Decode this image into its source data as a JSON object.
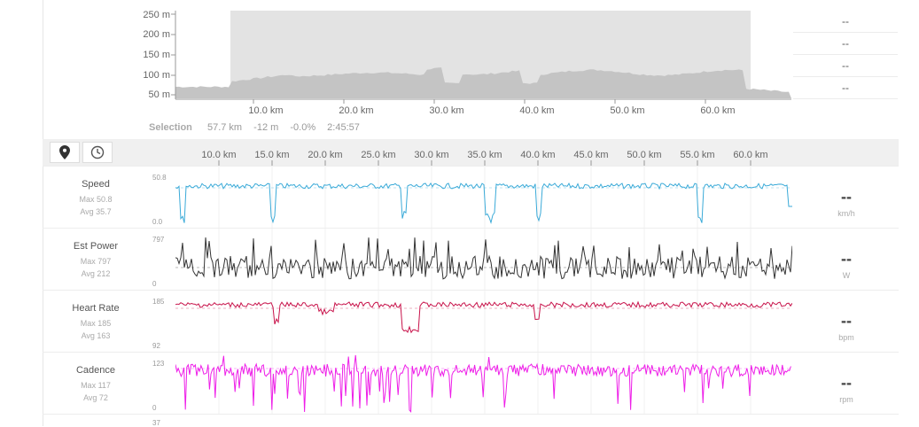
{
  "elevation": {
    "y_labels": [
      "250 m",
      "200 m",
      "150 m",
      "100 m",
      "50 m"
    ],
    "x_labels": [
      "10.0 km",
      "20.0 km",
      "30.0 km",
      "40.0 km",
      "50.0 km",
      "60.0 km"
    ],
    "fill_color": "#c4c4c4",
    "selection_color": "#e3e3e3"
  },
  "stats_panel": [
    "--",
    "--",
    "--",
    "--"
  ],
  "selection": {
    "label": "Selection",
    "distance": "57.7 km",
    "elevation_change": "-12 m",
    "grade": "-0.0%",
    "duration": "2:45:57"
  },
  "toolbar": {
    "buttons": [
      {
        "icon": "map-pin-icon"
      },
      {
        "icon": "clock-icon"
      }
    ]
  },
  "distance_axis": [
    "10.0 km",
    "15.0 km",
    "20.0 km",
    "25.0 km",
    "30.0 km",
    "35.0 km",
    "40.0 km",
    "45.0 km",
    "50.0 km",
    "55.0 km",
    "60.0 km"
  ],
  "metrics": [
    {
      "name": "Speed",
      "max": "Max 50.8",
      "avg": "Avg 35.7",
      "y_top": "50.8",
      "y_bottom": "0.0",
      "value": "--",
      "unit": "km/h",
      "color": "#3aaad8"
    },
    {
      "name": "Est Power",
      "max": "Max 797",
      "avg": "Avg 212",
      "y_top": "797",
      "y_bottom": "0",
      "value": "--",
      "unit": "W",
      "color": "#333333"
    },
    {
      "name": "Heart Rate",
      "max": "Max 185",
      "avg": "Avg 163",
      "y_top": "185",
      "y_bottom": "92",
      "value": "--",
      "unit": "bpm",
      "color": "#c8124a"
    },
    {
      "name": "Cadence",
      "max": "Max 117",
      "avg": "Avg 72",
      "y_top": "123",
      "y_bottom": "0",
      "value": "--",
      "unit": "rpm",
      "color": "#ee1ee8"
    }
  ],
  "next_row_label": "37"
}
